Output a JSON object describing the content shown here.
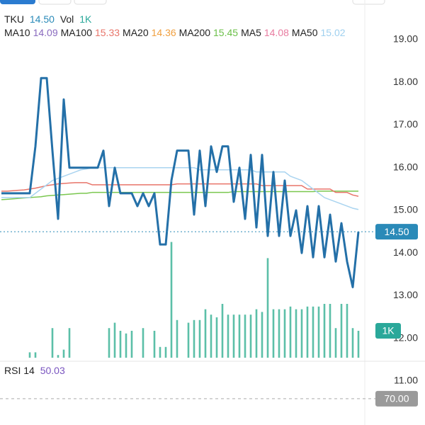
{
  "chart_data": {
    "type": "line",
    "symbol": "TKU",
    "last": {
      "value": 14.5,
      "label": "14.50"
    },
    "ylim": [
      9.97,
      19.93
    ],
    "yticks": [
      {
        "value": 19,
        "label": "19.00"
      },
      {
        "value": 18,
        "label": "18.00"
      },
      {
        "value": 17,
        "label": "17.00"
      },
      {
        "value": 16,
        "label": "16.00"
      },
      {
        "value": 15,
        "label": "15.00"
      },
      {
        "value": 14,
        "label": "14.00"
      },
      {
        "value": 13,
        "label": "13.00"
      },
      {
        "value": 12,
        "label": "12.00"
      },
      {
        "value": 11,
        "label": "11.00"
      }
    ],
    "ma_legend": [
      {
        "name": "MA10",
        "value": "14.09",
        "color": "#8a6bbf"
      },
      {
        "name": "MA100",
        "value": "15.33",
        "color": "#e8756a"
      },
      {
        "name": "MA20",
        "value": "14.36",
        "color": "#f0a040"
      },
      {
        "name": "MA200",
        "value": "15.45",
        "color": "#6cc04a"
      },
      {
        "name": "MA5",
        "value": "14.08",
        "color": "#e87ca0"
      },
      {
        "name": "MA50",
        "value": "15.02",
        "color": "#9fd0ef"
      }
    ],
    "series": [
      {
        "name": "MA200",
        "color": "#7ac74f",
        "values": [
          15.25,
          15.26,
          15.27,
          15.28,
          15.29,
          15.3,
          15.31,
          15.32,
          15.34,
          15.35,
          15.36,
          15.37,
          15.38,
          15.39,
          15.4,
          15.4,
          15.42,
          15.42,
          15.42,
          15.42,
          15.42,
          15.42,
          15.42,
          15.42,
          15.42,
          15.42,
          15.42,
          15.42,
          15.42,
          15.42,
          15.42,
          15.42,
          15.42,
          15.42,
          15.42,
          15.42,
          15.42,
          15.42,
          15.42,
          15.42,
          15.42,
          15.44,
          15.44,
          15.44,
          15.44,
          15.44,
          15.44,
          15.44,
          15.44,
          15.44,
          15.44,
          15.44,
          15.44,
          15.44,
          15.44,
          15.44,
          15.45,
          15.45,
          15.45,
          15.45,
          15.45,
          15.45,
          15.45,
          15.45
        ]
      },
      {
        "name": "MA100",
        "color": "#e8756a",
        "values": [
          15.45,
          15.45,
          15.46,
          15.47,
          15.48,
          15.5,
          15.52,
          15.55,
          15.58,
          15.6,
          15.62,
          15.63,
          15.64,
          15.65,
          15.65,
          15.65,
          15.6,
          15.6,
          15.6,
          15.6,
          15.6,
          15.6,
          15.6,
          15.6,
          15.6,
          15.6,
          15.6,
          15.6,
          15.6,
          15.6,
          15.6,
          15.62,
          15.62,
          15.62,
          15.62,
          15.62,
          15.62,
          15.62,
          15.62,
          15.62,
          15.62,
          15.62,
          15.62,
          15.62,
          15.62,
          15.62,
          15.58,
          15.58,
          15.58,
          15.58,
          15.58,
          15.58,
          15.58,
          15.58,
          15.5,
          15.5,
          15.5,
          15.5,
          15.5,
          15.42,
          15.42,
          15.42,
          15.36,
          15.33
        ]
      },
      {
        "name": "MA50",
        "color": "#a9d4f0",
        "values": [
          15.3,
          15.3,
          15.3,
          15.3,
          15.3,
          15.3,
          15.4,
          15.5,
          15.6,
          15.7,
          15.75,
          15.8,
          15.85,
          15.9,
          15.95,
          15.97,
          16.0,
          16.0,
          16.0,
          16.0,
          16.0,
          16.0,
          16.0,
          16.0,
          16.0,
          16.0,
          16.0,
          16.0,
          16.0,
          16.0,
          16.0,
          16.0,
          16.0,
          16.0,
          16.0,
          15.95,
          15.95,
          15.95,
          15.95,
          15.95,
          15.95,
          15.95,
          15.95,
          15.95,
          15.95,
          15.9,
          15.9,
          15.9,
          15.9,
          15.9,
          15.9,
          15.8,
          15.75,
          15.7,
          15.6,
          15.5,
          15.4,
          15.3,
          15.25,
          15.2,
          15.15,
          15.1,
          15.05,
          15.02
        ]
      },
      {
        "name": "TKU",
        "color": "#2470a8",
        "values": [
          15.4,
          15.4,
          15.4,
          15.4,
          15.4,
          15.4,
          16.5,
          18.1,
          18.1,
          16.4,
          14.8,
          17.6,
          16.0,
          16.0,
          16.0,
          16.0,
          16.0,
          16.0,
          16.4,
          15.1,
          16.0,
          15.4,
          15.4,
          15.4,
          15.1,
          15.4,
          15.1,
          15.4,
          14.2,
          14.2,
          15.7,
          16.4,
          16.4,
          16.4,
          14.9,
          16.4,
          15.1,
          16.5,
          15.9,
          16.5,
          16.5,
          15.2,
          16.0,
          14.8,
          16.3,
          14.6,
          16.3,
          14.4,
          15.9,
          14.4,
          15.7,
          14.4,
          15.0,
          14.0,
          15.1,
          13.9,
          15.1,
          13.9,
          14.9,
          13.8,
          14.7,
          13.8,
          13.2,
          14.5
        ]
      }
    ],
    "volume": {
      "name": "Vol",
      "color": "#5bbfa8",
      "ylim": [
        0,
        5000
      ],
      "last": {
        "value": 1000,
        "label": "1K"
      },
      "values": [
        0,
        0,
        0,
        0,
        0,
        200,
        200,
        0,
        0,
        1100,
        100,
        300,
        1100,
        0,
        0,
        0,
        0,
        0,
        0,
        1100,
        1300,
        1000,
        900,
        1000,
        0,
        1100,
        0,
        1000,
        400,
        400,
        4300,
        1400,
        0,
        1300,
        1400,
        1400,
        1800,
        1600,
        1500,
        2000,
        1600,
        1600,
        1600,
        1600,
        1600,
        1800,
        1700,
        3700,
        1800,
        1800,
        1800,
        1900,
        1800,
        1800,
        1900,
        1900,
        1900,
        2000,
        2000,
        1100,
        2000,
        2000,
        1100,
        1000
      ]
    },
    "rsi": {
      "name": "RSI 14",
      "last": "50.03",
      "ylim": [
        0,
        100
      ],
      "ticks": [
        {
          "value": 70,
          "label": "70.00"
        }
      ]
    }
  }
}
